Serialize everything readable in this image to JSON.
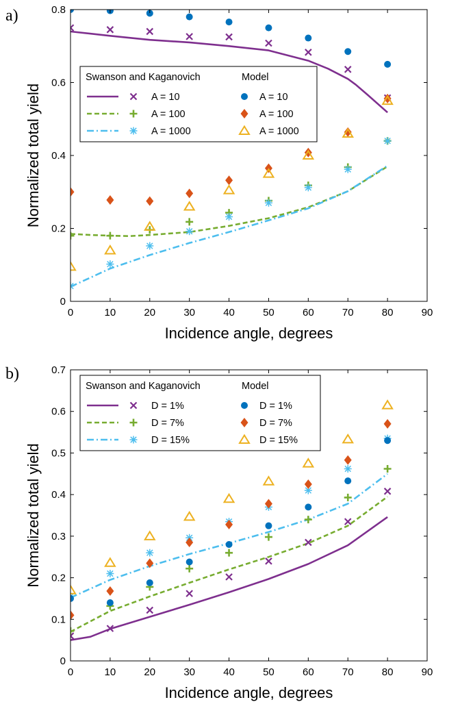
{
  "chart_data": [
    {
      "type": "line",
      "panel_label": "a)",
      "xlabel": "Incidence angle, degrees",
      "ylabel": "Normalized total yield",
      "xlim": [
        0,
        90
      ],
      "ylim": [
        0,
        0.8
      ],
      "xticks": [
        0,
        10,
        20,
        30,
        40,
        50,
        60,
        70,
        80,
        90
      ],
      "yticks": [
        0,
        0.2,
        0.4,
        0.6,
        0.8
      ],
      "ytick_labels": [
        "0",
        "0.2",
        "0.4",
        "0.6",
        "0.8"
      ],
      "grid": false,
      "legend_position": "upper-left",
      "legend_headers": [
        "Swanson and Kaganovich",
        "Model"
      ],
      "curves": [
        {
          "name": "A = 10",
          "color": "#7E2F8E",
          "dash": "solid",
          "x": [
            0,
            10,
            20,
            30,
            40,
            50,
            60,
            65,
            70,
            72,
            75,
            80
          ],
          "y": [
            0.74,
            0.728,
            0.717,
            0.71,
            0.7,
            0.688,
            0.66,
            0.638,
            0.61,
            0.594,
            0.566,
            0.518
          ]
        },
        {
          "name": "A = 100",
          "color": "#77AC30",
          "dash": "dashed",
          "x": [
            0,
            5,
            10,
            15,
            20,
            30,
            40,
            50,
            60,
            70,
            80
          ],
          "y": [
            0.185,
            0.182,
            0.18,
            0.179,
            0.182,
            0.19,
            0.207,
            0.228,
            0.258,
            0.302,
            0.37
          ]
        },
        {
          "name": "A = 1000",
          "color": "#4DBEEE",
          "dash": "dashdot",
          "x": [
            0,
            10,
            20,
            30,
            40,
            50,
            60,
            70,
            80
          ],
          "y": [
            0.04,
            0.09,
            0.127,
            0.16,
            0.19,
            0.222,
            0.255,
            0.302,
            0.372
          ]
        }
      ],
      "sk_markers": [
        {
          "name": "A = 10",
          "marker": "x",
          "color": "#7E2F8E",
          "x": [
            0,
            10,
            20,
            30,
            40,
            50,
            60,
            70,
            80
          ],
          "y": [
            0.75,
            0.745,
            0.74,
            0.726,
            0.725,
            0.708,
            0.683,
            0.636,
            0.558
          ]
        },
        {
          "name": "A = 100",
          "marker": "plus",
          "color": "#77AC30",
          "x": [
            0,
            10,
            20,
            30,
            40,
            50,
            60,
            70,
            80
          ],
          "y": [
            0.18,
            0.18,
            0.196,
            0.218,
            0.243,
            0.276,
            0.318,
            0.368,
            0.44
          ]
        },
        {
          "name": "A = 1000",
          "marker": "asterisk",
          "color": "#4DBEEE",
          "x": [
            0,
            10,
            20,
            30,
            40,
            50,
            60,
            70,
            80
          ],
          "y": [
            0.042,
            0.102,
            0.152,
            0.192,
            0.232,
            0.27,
            0.312,
            0.362,
            0.44
          ]
        }
      ],
      "model": [
        {
          "name": "A = 10",
          "marker": "circle",
          "color": "#0072BD",
          "x": [
            0,
            10,
            20,
            30,
            40,
            50,
            60,
            70,
            80
          ],
          "y": [
            0.8,
            0.797,
            0.79,
            0.78,
            0.766,
            0.75,
            0.722,
            0.685,
            0.65
          ]
        },
        {
          "name": "A = 100",
          "marker": "diamond",
          "color": "#D95319",
          "x": [
            0,
            10,
            20,
            30,
            40,
            50,
            60,
            70,
            80
          ],
          "y": [
            0.3,
            0.278,
            0.275,
            0.296,
            0.332,
            0.365,
            0.408,
            0.464,
            0.556
          ]
        },
        {
          "name": "A = 1000",
          "marker": "triangle",
          "color": "#EDB120",
          "x": [
            0,
            10,
            20,
            30,
            40,
            50,
            60,
            70,
            80
          ],
          "y": [
            0.095,
            0.14,
            0.205,
            0.26,
            0.305,
            0.35,
            0.4,
            0.46,
            0.55
          ]
        }
      ]
    },
    {
      "type": "line",
      "panel_label": "b)",
      "xlabel": "Incidence angle, degrees",
      "ylabel": "Normalized total yield",
      "xlim": [
        0,
        90
      ],
      "ylim": [
        0,
        0.7
      ],
      "xticks": [
        0,
        10,
        20,
        30,
        40,
        50,
        60,
        70,
        80,
        90
      ],
      "yticks": [
        0,
        0.1,
        0.2,
        0.3,
        0.4,
        0.5,
        0.6,
        0.7
      ],
      "ytick_labels": [
        "0",
        "0.1",
        "0.2",
        "0.3",
        "0.4",
        "0.5",
        "0.6",
        "0.7"
      ],
      "grid": false,
      "legend_position": "upper-left",
      "legend_headers": [
        "Swanson and Kaganovich",
        "Model"
      ],
      "curves": [
        {
          "name": "D = 1%",
          "color": "#7E2F8E",
          "dash": "solid",
          "x": [
            0,
            5,
            10,
            20,
            30,
            40,
            50,
            60,
            70,
            80
          ],
          "y": [
            0.05,
            0.058,
            0.077,
            0.106,
            0.135,
            0.165,
            0.197,
            0.233,
            0.278,
            0.346
          ]
        },
        {
          "name": "D = 7%",
          "color": "#77AC30",
          "dash": "dashed",
          "x": [
            0,
            10,
            20,
            30,
            40,
            50,
            60,
            70,
            80
          ],
          "y": [
            0.07,
            0.12,
            0.155,
            0.188,
            0.22,
            0.25,
            0.283,
            0.325,
            0.395
          ]
        },
        {
          "name": "D = 15%",
          "color": "#4DBEEE",
          "dash": "dashdot",
          "x": [
            0,
            10,
            20,
            30,
            40,
            50,
            60,
            70,
            80
          ],
          "y": [
            0.152,
            0.195,
            0.228,
            0.257,
            0.283,
            0.31,
            0.34,
            0.378,
            0.45
          ]
        }
      ],
      "sk_markers": [
        {
          "name": "D = 1%",
          "marker": "x",
          "color": "#7E2F8E",
          "x": [
            0,
            10,
            20,
            30,
            40,
            50,
            60,
            70,
            80
          ],
          "y": [
            0.06,
            0.078,
            0.122,
            0.162,
            0.202,
            0.24,
            0.285,
            0.335,
            0.408
          ]
        },
        {
          "name": "D = 7%",
          "marker": "plus",
          "color": "#77AC30",
          "x": [
            0,
            10,
            20,
            30,
            40,
            50,
            60,
            70,
            80
          ],
          "y": [
            0.072,
            0.132,
            0.178,
            0.222,
            0.26,
            0.298,
            0.34,
            0.393,
            0.462
          ]
        },
        {
          "name": "D = 15%",
          "marker": "asterisk",
          "color": "#4DBEEE",
          "x": [
            0,
            10,
            20,
            30,
            40,
            50,
            60,
            70,
            80
          ],
          "y": [
            0.155,
            0.21,
            0.26,
            0.296,
            0.335,
            0.37,
            0.41,
            0.462,
            0.535
          ]
        }
      ],
      "model": [
        {
          "name": "D = 1%",
          "marker": "circle",
          "color": "#0072BD",
          "x": [
            0,
            10,
            20,
            30,
            40,
            50,
            60,
            70,
            80
          ],
          "y": [
            0.15,
            0.14,
            0.188,
            0.238,
            0.28,
            0.325,
            0.37,
            0.433,
            0.53
          ]
        },
        {
          "name": "D = 7%",
          "marker": "diamond",
          "color": "#D95319",
          "x": [
            0,
            10,
            20,
            30,
            40,
            50,
            60,
            70,
            80
          ],
          "y": [
            0.11,
            0.168,
            0.235,
            0.285,
            0.328,
            0.378,
            0.425,
            0.483,
            0.57
          ]
        },
        {
          "name": "D = 15%",
          "marker": "triangle",
          "color": "#EDB120",
          "x": [
            0,
            10,
            20,
            30,
            40,
            50,
            60,
            70,
            80
          ],
          "y": [
            0.17,
            0.236,
            0.3,
            0.347,
            0.39,
            0.432,
            0.475,
            0.533,
            0.615
          ]
        }
      ]
    }
  ]
}
